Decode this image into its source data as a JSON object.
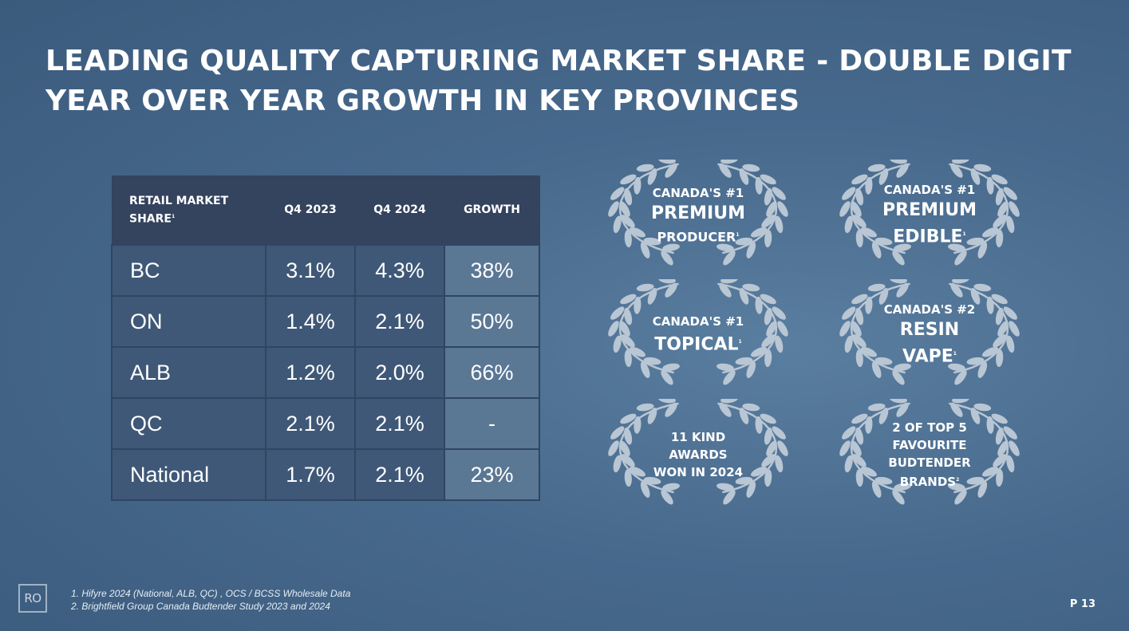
{
  "title": {
    "line1": "LEADING QUALITY CAPTURING MARKET SHARE - DOUBLE DIGIT",
    "line2": "YEAR OVER YEAR GROWTH IN KEY PROVINCES"
  },
  "table": {
    "header": {
      "col1_line1": "RETAIL MARKET",
      "col1_line2": "SHARE",
      "col1_footnote": "1",
      "q4_2023": "Q4 2023",
      "q4_2024": "Q4 2024",
      "growth": "GROWTH"
    },
    "rows": [
      {
        "region": "BC",
        "q4_2023": "3.1%",
        "q4_2024": "4.3%",
        "growth": "38%"
      },
      {
        "region": "ON",
        "q4_2023": "1.4%",
        "q4_2024": "2.1%",
        "growth": "50%"
      },
      {
        "region": "ALB",
        "q4_2023": "1.2%",
        "q4_2024": "2.0%",
        "growth": "66%"
      },
      {
        "region": "QC",
        "q4_2023": "2.1%",
        "q4_2024": "2.1%",
        "growth": "-"
      },
      {
        "region": "National",
        "q4_2023": "1.7%",
        "q4_2024": "2.1%",
        "growth": "23%"
      }
    ]
  },
  "awards": [
    {
      "line1": "CANADA'S #1",
      "line2": "PREMIUM",
      "line3": "PRODUCER",
      "footnote": "1",
      "icon": "laurel-wreath-icon"
    },
    {
      "line1": "CANADA'S #1",
      "line2": "PREMIUM",
      "line3": "EDIBLE",
      "footnote": "1",
      "icon": "laurel-wreath-icon"
    },
    {
      "line1": "CANADA'S #1",
      "line2": "TOPICAL",
      "footnote": "1",
      "icon": "laurel-wreath-icon"
    },
    {
      "line1": "CANADA'S #2",
      "line2": "RESIN",
      "line3": "VAPE",
      "footnote": "1",
      "icon": "laurel-wreath-icon"
    },
    {
      "line1": "11 KIND",
      "line2": "AWARDS",
      "line3": "WON IN 2024",
      "icon": "laurel-wreath-icon"
    },
    {
      "line1": "2 OF TOP 5",
      "line2": "FAVOURITE",
      "line3": "BUDTENDER",
      "line4": "BRANDS",
      "footnote": "2",
      "icon": "laurel-wreath-icon"
    }
  ],
  "footnotes": [
    "1.  Hifyre 2024 (National, ALB, QC) , OCS / BCSS Wholesale Data",
    "2. Brightfield Group Canada Budtender Study 2023 and 2024"
  ],
  "logo_text": "RO",
  "page_number": "P 13",
  "colors": {
    "laurel": "#b9c6d3",
    "header_bg": "#34435e",
    "cell_bg": "#3f5877",
    "growth_bg": "#5a7794"
  }
}
